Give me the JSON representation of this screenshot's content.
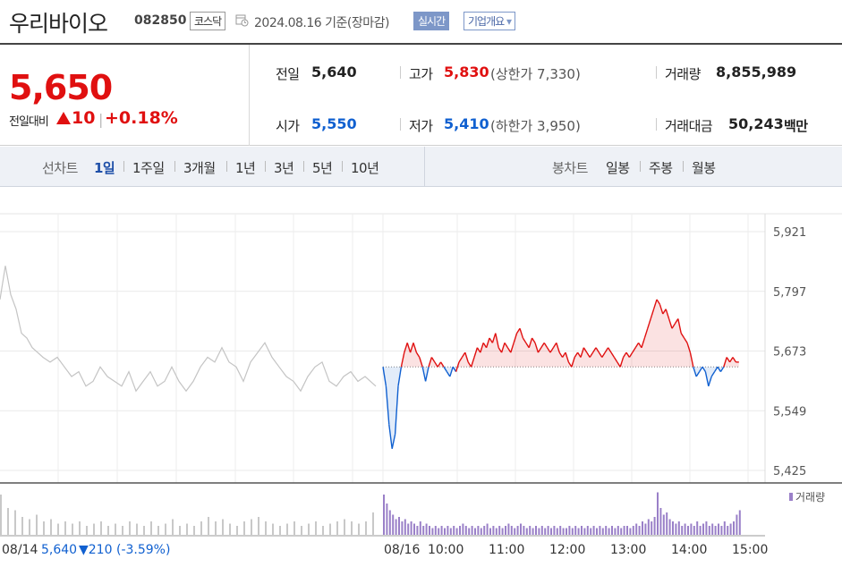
{
  "header": {
    "name": "우리바이오",
    "code": "082850",
    "market": "코스닥",
    "date": "2024.08.16 기준(장마감)",
    "realtime_label": "실시간",
    "overview_label": "기업개요",
    "overview_arrow": "▾"
  },
  "quote": {
    "price": "5,650",
    "compare_label": "전일대비",
    "change_value": "10",
    "change_sep": "|",
    "change_percent": "+0.18%",
    "prev_label": "전일",
    "prev_value": "5,640",
    "open_label": "시가",
    "open_value": "5,550",
    "high_label": "고가",
    "high_value": "5,830",
    "upper_limit": "(상한가 7,330)",
    "low_label": "저가",
    "low_value": "5,410",
    "lower_limit": "(하한가 3,950)",
    "volume_label": "거래량",
    "volume_value": "8,855,989",
    "amount_label": "거래대금",
    "amount_value": "50,243",
    "amount_unit": "백만"
  },
  "period": {
    "line_label": "선차트",
    "line_options": [
      "1일",
      "1주일",
      "3개월",
      "1년",
      "3년",
      "5년",
      "10년"
    ],
    "active": "1일",
    "candle_label": "봉차트",
    "candle_options": [
      "일봉",
      "주봉",
      "월봉"
    ]
  },
  "colors": {
    "up": "#e01010",
    "down": "#1060d0",
    "prev_day": "#c4c4c4",
    "volume": "#9a80c8",
    "volume_prev": "#c8c8c8"
  },
  "chart_data": {
    "type": "line",
    "y_ticks": [
      "5,921",
      "5,797",
      "5,673",
      "5,549",
      "5,425"
    ],
    "ylim": [
      5425,
      5921
    ],
    "baseline": 5640,
    "volume_legend": "거래량",
    "prev_day_label": "08/14",
    "prev_day_close": "5,640",
    "prev_day_change": "▼210",
    "prev_day_change_pct": "(-3.59%)",
    "today_label": "08/16",
    "time_labels": [
      "10:00",
      "11:00",
      "12:00",
      "13:00",
      "14:00",
      "15:00"
    ],
    "prev_day_series": [
      [
        0,
        5780
      ],
      [
        0.15,
        5850
      ],
      [
        0.3,
        5790
      ],
      [
        0.45,
        5760
      ],
      [
        0.6,
        5710
      ],
      [
        0.75,
        5700
      ],
      [
        0.9,
        5680
      ],
      [
        1.05,
        5670
      ],
      [
        1.2,
        5660
      ],
      [
        1.4,
        5650
      ],
      [
        1.6,
        5660
      ],
      [
        1.8,
        5640
      ],
      [
        2.0,
        5620
      ],
      [
        2.2,
        5630
      ],
      [
        2.4,
        5600
      ],
      [
        2.6,
        5610
      ],
      [
        2.8,
        5640
      ],
      [
        3.0,
        5620
      ],
      [
        3.2,
        5610
      ],
      [
        3.4,
        5600
      ],
      [
        3.6,
        5630
      ],
      [
        3.8,
        5590
      ],
      [
        4.0,
        5610
      ],
      [
        4.2,
        5630
      ],
      [
        4.4,
        5600
      ],
      [
        4.6,
        5610
      ],
      [
        4.8,
        5640
      ],
      [
        5.0,
        5610
      ],
      [
        5.2,
        5590
      ],
      [
        5.4,
        5610
      ],
      [
        5.6,
        5640
      ],
      [
        5.8,
        5660
      ],
      [
        6.0,
        5650
      ],
      [
        6.2,
        5680
      ],
      [
        6.4,
        5650
      ],
      [
        6.6,
        5640
      ],
      [
        6.8,
        5610
      ],
      [
        7.0,
        5650
      ],
      [
        7.2,
        5670
      ],
      [
        7.4,
        5690
      ],
      [
        7.6,
        5660
      ],
      [
        7.8,
        5640
      ],
      [
        8.0,
        5620
      ],
      [
        8.2,
        5610
      ],
      [
        8.4,
        5590
      ],
      [
        8.6,
        5620
      ],
      [
        8.8,
        5640
      ],
      [
        9.0,
        5650
      ],
      [
        9.2,
        5610
      ],
      [
        9.4,
        5600
      ],
      [
        9.6,
        5620
      ],
      [
        9.8,
        5630
      ],
      [
        10.0,
        5610
      ],
      [
        10.2,
        5620
      ],
      [
        10.5,
        5600
      ]
    ],
    "today_series": [
      [
        9.0,
        5640
      ],
      [
        9.05,
        5600
      ],
      [
        9.1,
        5520
      ],
      [
        9.15,
        5470
      ],
      [
        9.2,
        5500
      ],
      [
        9.25,
        5600
      ],
      [
        9.3,
        5640
      ],
      [
        9.35,
        5670
      ],
      [
        9.4,
        5690
      ],
      [
        9.45,
        5670
      ],
      [
        9.5,
        5690
      ],
      [
        9.55,
        5670
      ],
      [
        9.6,
        5660
      ],
      [
        9.65,
        5640
      ],
      [
        9.7,
        5610
      ],
      [
        9.75,
        5640
      ],
      [
        9.8,
        5660
      ],
      [
        9.85,
        5650
      ],
      [
        9.9,
        5640
      ],
      [
        9.95,
        5650
      ],
      [
        10.0,
        5640
      ],
      [
        10.05,
        5630
      ],
      [
        10.1,
        5620
      ],
      [
        10.15,
        5640
      ],
      [
        10.2,
        5630
      ],
      [
        10.25,
        5650
      ],
      [
        10.3,
        5660
      ],
      [
        10.35,
        5670
      ],
      [
        10.4,
        5650
      ],
      [
        10.45,
        5640
      ],
      [
        10.5,
        5660
      ],
      [
        10.55,
        5680
      ],
      [
        10.6,
        5670
      ],
      [
        10.65,
        5690
      ],
      [
        10.7,
        5680
      ],
      [
        10.75,
        5700
      ],
      [
        10.8,
        5690
      ],
      [
        10.85,
        5710
      ],
      [
        10.9,
        5680
      ],
      [
        10.95,
        5670
      ],
      [
        11.0,
        5690
      ],
      [
        11.05,
        5680
      ],
      [
        11.1,
        5670
      ],
      [
        11.15,
        5690
      ],
      [
        11.2,
        5710
      ],
      [
        11.25,
        5720
      ],
      [
        11.3,
        5700
      ],
      [
        11.35,
        5690
      ],
      [
        11.4,
        5680
      ],
      [
        11.45,
        5700
      ],
      [
        11.5,
        5690
      ],
      [
        11.55,
        5670
      ],
      [
        11.6,
        5680
      ],
      [
        11.65,
        5690
      ],
      [
        11.7,
        5680
      ],
      [
        11.75,
        5670
      ],
      [
        11.8,
        5680
      ],
      [
        11.85,
        5690
      ],
      [
        11.9,
        5670
      ],
      [
        11.95,
        5660
      ],
      [
        12.0,
        5670
      ],
      [
        12.05,
        5650
      ],
      [
        12.1,
        5640
      ],
      [
        12.15,
        5660
      ],
      [
        12.2,
        5670
      ],
      [
        12.25,
        5660
      ],
      [
        12.3,
        5680
      ],
      [
        12.35,
        5670
      ],
      [
        12.4,
        5660
      ],
      [
        12.45,
        5670
      ],
      [
        12.5,
        5680
      ],
      [
        12.55,
        5670
      ],
      [
        12.6,
        5660
      ],
      [
        12.65,
        5670
      ],
      [
        12.7,
        5680
      ],
      [
        12.75,
        5670
      ],
      [
        12.8,
        5660
      ],
      [
        12.85,
        5650
      ],
      [
        12.9,
        5640
      ],
      [
        12.95,
        5660
      ],
      [
        13.0,
        5670
      ],
      [
        13.05,
        5660
      ],
      [
        13.1,
        5670
      ],
      [
        13.15,
        5680
      ],
      [
        13.2,
        5690
      ],
      [
        13.25,
        5680
      ],
      [
        13.3,
        5700
      ],
      [
        13.35,
        5720
      ],
      [
        13.4,
        5740
      ],
      [
        13.45,
        5760
      ],
      [
        13.5,
        5780
      ],
      [
        13.55,
        5770
      ],
      [
        13.6,
        5750
      ],
      [
        13.65,
        5760
      ],
      [
        13.7,
        5740
      ],
      [
        13.75,
        5720
      ],
      [
        13.8,
        5730
      ],
      [
        13.85,
        5740
      ],
      [
        13.9,
        5710
      ],
      [
        13.95,
        5700
      ],
      [
        14.0,
        5690
      ],
      [
        14.05,
        5670
      ],
      [
        14.1,
        5640
      ],
      [
        14.15,
        5620
      ],
      [
        14.2,
        5630
      ],
      [
        14.25,
        5640
      ],
      [
        14.3,
        5630
      ],
      [
        14.35,
        5600
      ],
      [
        14.4,
        5620
      ],
      [
        14.45,
        5630
      ],
      [
        14.5,
        5640
      ],
      [
        14.55,
        5630
      ],
      [
        14.6,
        5640
      ],
      [
        14.65,
        5660
      ],
      [
        14.7,
        5650
      ],
      [
        14.75,
        5660
      ],
      [
        14.8,
        5650
      ],
      [
        14.85,
        5650
      ]
    ],
    "prev_day_volume": [
      [
        0,
        0.9
      ],
      [
        0.2,
        0.6
      ],
      [
        0.4,
        0.55
      ],
      [
        0.6,
        0.4
      ],
      [
        0.8,
        0.35
      ],
      [
        1.0,
        0.45
      ],
      [
        1.2,
        0.3
      ],
      [
        1.4,
        0.35
      ],
      [
        1.6,
        0.25
      ],
      [
        1.8,
        0.3
      ],
      [
        2.0,
        0.25
      ],
      [
        2.2,
        0.3
      ],
      [
        2.4,
        0.2
      ],
      [
        2.6,
        0.25
      ],
      [
        2.8,
        0.3
      ],
      [
        3.0,
        0.2
      ],
      [
        3.2,
        0.25
      ],
      [
        3.4,
        0.2
      ],
      [
        3.6,
        0.3
      ],
      [
        3.8,
        0.25
      ],
      [
        4.0,
        0.2
      ],
      [
        4.2,
        0.3
      ],
      [
        4.4,
        0.2
      ],
      [
        4.6,
        0.25
      ],
      [
        4.8,
        0.35
      ],
      [
        5.0,
        0.2
      ],
      [
        5.2,
        0.25
      ],
      [
        5.4,
        0.2
      ],
      [
        5.6,
        0.3
      ],
      [
        5.8,
        0.4
      ],
      [
        6.0,
        0.3
      ],
      [
        6.2,
        0.35
      ],
      [
        6.4,
        0.25
      ],
      [
        6.6,
        0.2
      ],
      [
        6.8,
        0.3
      ],
      [
        7.0,
        0.35
      ],
      [
        7.2,
        0.4
      ],
      [
        7.4,
        0.3
      ],
      [
        7.6,
        0.25
      ],
      [
        7.8,
        0.2
      ],
      [
        8.0,
        0.25
      ],
      [
        8.2,
        0.3
      ],
      [
        8.4,
        0.2
      ],
      [
        8.6,
        0.25
      ],
      [
        8.8,
        0.3
      ],
      [
        9.0,
        0.2
      ],
      [
        9.2,
        0.25
      ],
      [
        9.4,
        0.3
      ],
      [
        9.6,
        0.35
      ],
      [
        9.8,
        0.3
      ],
      [
        10.0,
        0.25
      ],
      [
        10.2,
        0.3
      ],
      [
        10.4,
        0.5
      ]
    ],
    "today_volume": [
      [
        9.0,
        0.9
      ],
      [
        9.05,
        0.7
      ],
      [
        9.1,
        0.55
      ],
      [
        9.15,
        0.45
      ],
      [
        9.2,
        0.35
      ],
      [
        9.25,
        0.4
      ],
      [
        9.3,
        0.3
      ],
      [
        9.35,
        0.35
      ],
      [
        9.4,
        0.25
      ],
      [
        9.45,
        0.3
      ],
      [
        9.5,
        0.25
      ],
      [
        9.55,
        0.2
      ],
      [
        9.6,
        0.3
      ],
      [
        9.65,
        0.2
      ],
      [
        9.7,
        0.25
      ],
      [
        9.75,
        0.2
      ],
      [
        9.8,
        0.15
      ],
      [
        9.85,
        0.2
      ],
      [
        9.9,
        0.15
      ],
      [
        9.95,
        0.2
      ],
      [
        10.0,
        0.15
      ],
      [
        10.05,
        0.2
      ],
      [
        10.1,
        0.15
      ],
      [
        10.15,
        0.2
      ],
      [
        10.2,
        0.15
      ],
      [
        10.25,
        0.2
      ],
      [
        10.3,
        0.25
      ],
      [
        10.35,
        0.2
      ],
      [
        10.4,
        0.15
      ],
      [
        10.45,
        0.2
      ],
      [
        10.5,
        0.15
      ],
      [
        10.55,
        0.2
      ],
      [
        10.6,
        0.15
      ],
      [
        10.65,
        0.2
      ],
      [
        10.7,
        0.25
      ],
      [
        10.75,
        0.15
      ],
      [
        10.8,
        0.2
      ],
      [
        10.85,
        0.15
      ],
      [
        10.9,
        0.2
      ],
      [
        10.95,
        0.15
      ],
      [
        11.0,
        0.2
      ],
      [
        11.05,
        0.25
      ],
      [
        11.1,
        0.2
      ],
      [
        11.15,
        0.15
      ],
      [
        11.2,
        0.2
      ],
      [
        11.25,
        0.25
      ],
      [
        11.3,
        0.2
      ],
      [
        11.35,
        0.15
      ],
      [
        11.4,
        0.2
      ],
      [
        11.45,
        0.15
      ],
      [
        11.5,
        0.2
      ],
      [
        11.55,
        0.15
      ],
      [
        11.6,
        0.2
      ],
      [
        11.65,
        0.15
      ],
      [
        11.7,
        0.2
      ],
      [
        11.75,
        0.15
      ],
      [
        11.8,
        0.2
      ],
      [
        11.85,
        0.15
      ],
      [
        11.9,
        0.2
      ],
      [
        11.95,
        0.15
      ],
      [
        12.0,
        0.15
      ],
      [
        12.05,
        0.2
      ],
      [
        12.1,
        0.15
      ],
      [
        12.15,
        0.2
      ],
      [
        12.2,
        0.15
      ],
      [
        12.25,
        0.2
      ],
      [
        12.3,
        0.15
      ],
      [
        12.35,
        0.2
      ],
      [
        12.4,
        0.15
      ],
      [
        12.45,
        0.2
      ],
      [
        12.5,
        0.15
      ],
      [
        12.55,
        0.2
      ],
      [
        12.6,
        0.15
      ],
      [
        12.65,
        0.2
      ],
      [
        12.7,
        0.15
      ],
      [
        12.75,
        0.2
      ],
      [
        12.8,
        0.15
      ],
      [
        12.85,
        0.2
      ],
      [
        12.9,
        0.15
      ],
      [
        12.95,
        0.2
      ],
      [
        13.0,
        0.2
      ],
      [
        13.05,
        0.15
      ],
      [
        13.1,
        0.2
      ],
      [
        13.15,
        0.25
      ],
      [
        13.2,
        0.2
      ],
      [
        13.25,
        0.3
      ],
      [
        13.3,
        0.25
      ],
      [
        13.35,
        0.35
      ],
      [
        13.4,
        0.3
      ],
      [
        13.45,
        0.4
      ],
      [
        13.5,
        0.95
      ],
      [
        13.55,
        0.6
      ],
      [
        13.6,
        0.45
      ],
      [
        13.65,
        0.5
      ],
      [
        13.7,
        0.35
      ],
      [
        13.75,
        0.3
      ],
      [
        13.8,
        0.25
      ],
      [
        13.85,
        0.3
      ],
      [
        13.9,
        0.2
      ],
      [
        13.95,
        0.25
      ],
      [
        14.0,
        0.2
      ],
      [
        14.05,
        0.25
      ],
      [
        14.1,
        0.2
      ],
      [
        14.15,
        0.3
      ],
      [
        14.2,
        0.2
      ],
      [
        14.25,
        0.25
      ],
      [
        14.3,
        0.3
      ],
      [
        14.35,
        0.2
      ],
      [
        14.4,
        0.25
      ],
      [
        14.45,
        0.2
      ],
      [
        14.5,
        0.25
      ],
      [
        14.55,
        0.2
      ],
      [
        14.6,
        0.3
      ],
      [
        14.65,
        0.2
      ],
      [
        14.7,
        0.25
      ],
      [
        14.75,
        0.3
      ],
      [
        14.8,
        0.45
      ],
      [
        14.85,
        0.55
      ]
    ]
  }
}
